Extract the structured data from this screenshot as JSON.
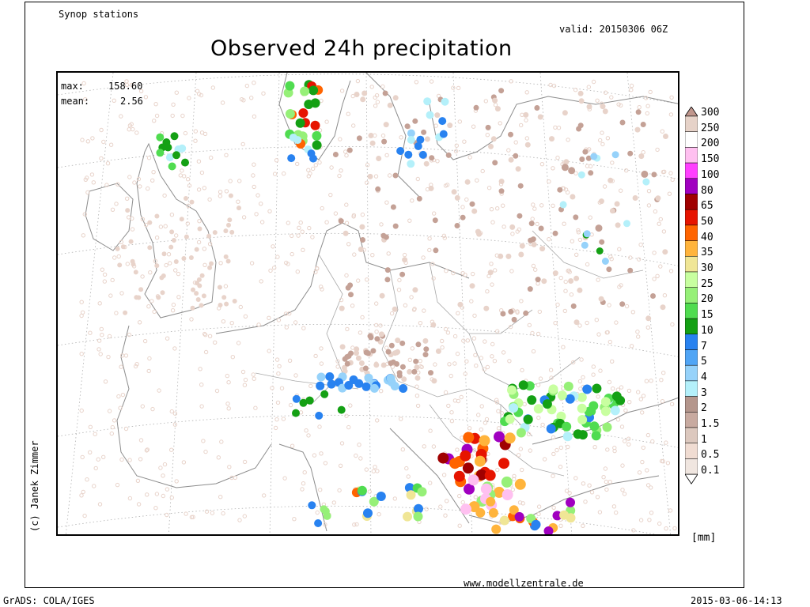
{
  "header": {
    "stations_label": "Synop stations",
    "valid_label": "valid: 20150306 06Z",
    "title": "Observed 24h precipitation"
  },
  "stats": {
    "max_label": "max:",
    "max_value": "158.60",
    "mean_label": "mean:",
    "mean_value": "2.56"
  },
  "credit": "(c) Janek Zimmer",
  "unit": "[mm]",
  "footer": {
    "website": "www.modellzentrale.de",
    "software": "GrADS: COLA/IGES",
    "timestamp": "2015-03-06-14:13"
  },
  "legend": {
    "levels": [
      "300",
      "250",
      "200",
      "150",
      "100",
      "80",
      "65",
      "50",
      "40",
      "35",
      "30",
      "25",
      "20",
      "15",
      "10",
      "7",
      "5",
      "4",
      "3",
      "2",
      "1.5",
      "1",
      "0.5",
      "0.1"
    ],
    "colors": [
      "#c0968c",
      "#e6d2c8",
      "#ffffff",
      "#ffc0f0",
      "#ff40ff",
      "#a000c0",
      "#a00000",
      "#e61400",
      "#ff6400",
      "#ffb43c",
      "#f0e696",
      "#c8ffa0",
      "#96f078",
      "#50dc50",
      "#14a014",
      "#2882f0",
      "#50a5f5",
      "#96d2fa",
      "#b4f0fa",
      "#b4968c",
      "#c8aaa0",
      "#dcc8be",
      "#f0dcd2",
      "#f0e6e0"
    ]
  },
  "station_colors": {
    "none": "#e8d3ca",
    "brown": "#c4a196",
    "light_cyan": "#b4f0fa",
    "light_blue": "#96d2fa",
    "blue": "#2882f0",
    "dark_green": "#14a014",
    "green": "#50dc50",
    "light_green": "#96f078",
    "pale_green": "#c8ffa0",
    "pale_yellow": "#f0e696",
    "orange": "#ffb43c",
    "dark_orange": "#ff6400",
    "red": "#e61400",
    "dark_red": "#a00000",
    "purple": "#a000c0",
    "pink": "#ffc0f0"
  }
}
